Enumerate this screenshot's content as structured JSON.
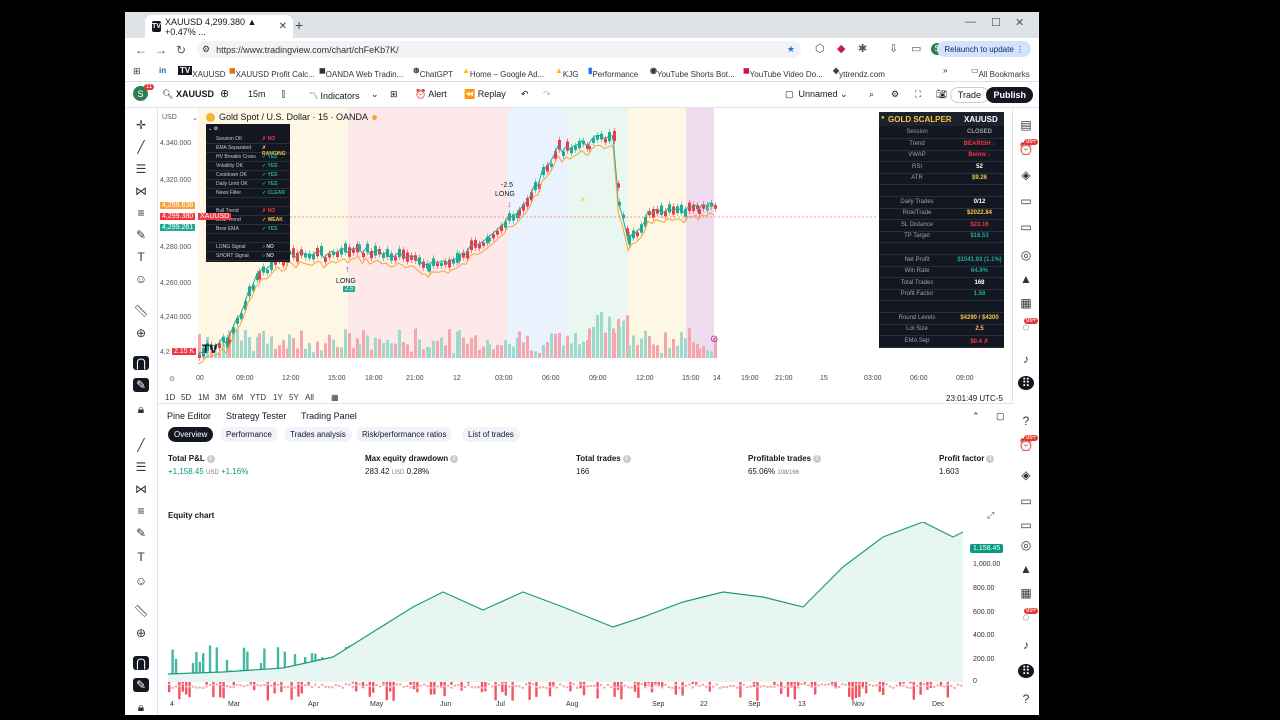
{
  "browser": {
    "tab_title": "XAUUSD 4,299.380 ▲ +0.47% ...",
    "url": "https://www.tradingview.com/chart/chFeKb7K/",
    "relaunch": "Relaunch to update",
    "profile": "S",
    "bookmarks": [
      "XAUUSD",
      "XAUUSD Profit Calc...",
      "OANDA Web Tradin...",
      "ChatGPT",
      "Home – Google Ad...",
      "KJG",
      "Performance",
      "YouTube Shorts Bot...",
      "YouTube Video Do...",
      "yttrendz.com",
      "All Bookmarks"
    ]
  },
  "header": {
    "avatar": "S",
    "avatar_badge": "11",
    "symbol": "XAUUSD",
    "interval": "15m",
    "indicators": "Indicators",
    "alert": "Alert",
    "replay": "Replay",
    "layout": "Unnamed",
    "trade": "Trade",
    "publish": "Publish"
  },
  "chart": {
    "currency": "USD",
    "title": "Gold Spot / U.S. Dollar · 15 · OANDA",
    "y_ticks": [
      "4,340.000",
      "4,320.000",
      "4,280.000",
      "4,260.000",
      "4,240.000",
      "4,2"
    ],
    "price_tags": {
      "top": "4,299.638",
      "mid": "4,299.380",
      "bottom": "4,299.261",
      "symbol": "XAUUSD",
      "vol": "2.15 K"
    },
    "time_ticks": [
      "00",
      "09:00",
      "12:00",
      "15:00",
      "18:00",
      "21:00",
      "12",
      "03:00",
      "06:00",
      "09:00",
      "12:00",
      "15:00",
      "14",
      "19:00",
      "21:00",
      "15",
      "03:00",
      "06:00",
      "09:00"
    ],
    "ranges": [
      "1D",
      "5D",
      "1M",
      "3M",
      "6M",
      "YTD",
      "1Y",
      "5Y",
      "All"
    ],
    "clock": "23:01:49 UTC-5",
    "signal_labels": {
      "short": "-2.5",
      "short_label": "LONG",
      "long": "LONG",
      "long_val": "2.5"
    },
    "indicator_rows": [
      {
        "name": "Session OK",
        "value": "✗ NO",
        "color": "#f23645"
      },
      {
        "name": "EMA Separated",
        "value": "✗ RANGING",
        "color": "#f5c542"
      },
      {
        "name": "HV Breakin Cross",
        "value": "✓ YES",
        "color": "#22ab94"
      },
      {
        "name": "Volatility OK",
        "value": "✓ YES",
        "color": "#22ab94"
      },
      {
        "name": "Cooldown OK",
        "value": "✓ YES",
        "color": "#22ab94"
      },
      {
        "name": "Daily Limit OK",
        "value": "✓ YES",
        "color": "#22ab94"
      },
      {
        "name": "News Filter",
        "value": "✓ CLEAR",
        "color": "#22ab94"
      },
      {
        "name": "",
        "value": "",
        "color": "#ccc"
      },
      {
        "name": "Bull Trend",
        "value": "✗ NO",
        "color": "#f23645"
      },
      {
        "name": "Bear Trend",
        "value": "✓ WEAK",
        "color": "#f5c542"
      },
      {
        "name": "Bear EMA",
        "value": "✓ YES",
        "color": "#22ab94"
      },
      {
        "name": "",
        "value": "",
        "color": "#ccc"
      },
      {
        "name": "LONG Signal",
        "value": "○ NO",
        "color": "#ccc"
      },
      {
        "name": "SHORT Signal",
        "value": "○ NO",
        "color": "#ccc"
      }
    ],
    "scalper": {
      "title": "GOLD SCALPER",
      "symbol": "XAUUSD",
      "rows": [
        {
          "name": "Session",
          "value": "CLOSED",
          "color": "#9aa0ac"
        },
        {
          "name": "Trend",
          "value": "BEARISH ↓",
          "color": "#f23645"
        },
        {
          "name": "VWAP",
          "value": "Below ↓",
          "color": "#f23645"
        },
        {
          "name": "RSI",
          "value": "52",
          "color": "#ffffff"
        },
        {
          "name": "ATR",
          "value": "$9.26",
          "color": "#f5c542"
        },
        {
          "name": "",
          "value": "",
          "color": "#fff"
        },
        {
          "name": "Daily Trades",
          "value": "0/12",
          "color": "#ffffff"
        },
        {
          "name": "Risk/Trade",
          "value": "$2022.84",
          "color": "#f5c542"
        },
        {
          "name": "SL Distance",
          "value": "$23.16",
          "color": "#f23645"
        },
        {
          "name": "TP Target",
          "value": "$18.53",
          "color": "#22ab94"
        },
        {
          "name": "",
          "value": "",
          "color": "#fff"
        },
        {
          "name": "Net Profit",
          "value": "$1541.93 (1.1%)",
          "color": "#22ab94"
        },
        {
          "name": "Win Rate",
          "value": "64.9%",
          "color": "#22ab94"
        },
        {
          "name": "Total Trades",
          "value": "168",
          "color": "#ffffff"
        },
        {
          "name": "Profit Factor",
          "value": "1.58",
          "color": "#22ab94"
        },
        {
          "name": "",
          "value": "",
          "color": "#fff"
        },
        {
          "name": "Round Levels",
          "value": "$4290 / $4300",
          "color": "#f5c542"
        },
        {
          "name": "Lot Size",
          "value": "2.5",
          "color": "#f5c542"
        },
        {
          "name": "EMA Sep",
          "value": "$0.4 ✗",
          "color": "#f23645"
        }
      ]
    }
  },
  "panel": {
    "tabs": [
      "Pine Editor",
      "Strategy Tester",
      "Trading Panel"
    ],
    "subtabs": [
      "Overview",
      "Performance",
      "Trades analysis",
      "Risk/performance ratios",
      "List of trades"
    ],
    "metrics": [
      {
        "label": "Total P&L",
        "value": "+1,158.45",
        "unit": "USD",
        "extra": "+1.16%",
        "positive": true
      },
      {
        "label": "Max equity drawdown",
        "value": "283.42",
        "unit": "USD",
        "extra": "0.28%",
        "positive": false
      },
      {
        "label": "Total trades",
        "value": "166",
        "unit": "",
        "extra": "",
        "positive": false
      },
      {
        "label": "Profitable trades",
        "value": "65.06%",
        "unit": "108/166",
        "extra": "",
        "positive": false
      },
      {
        "label": "Profit factor",
        "value": "1.603",
        "unit": "",
        "extra": "",
        "positive": false
      }
    ],
    "equity_title": "Equity chart",
    "equity_last": "1,158.45",
    "eq_y_ticks": [
      "1,000.00",
      "800.00",
      "600.00",
      "400.00",
      "200.00",
      "0"
    ],
    "eq_x_ticks": [
      "4",
      "Mar",
      "Apr",
      "May",
      "Jun",
      "Jul",
      "Aug",
      "Sep",
      "22",
      "Sep",
      "13",
      "Nov",
      "Dec"
    ]
  }
}
